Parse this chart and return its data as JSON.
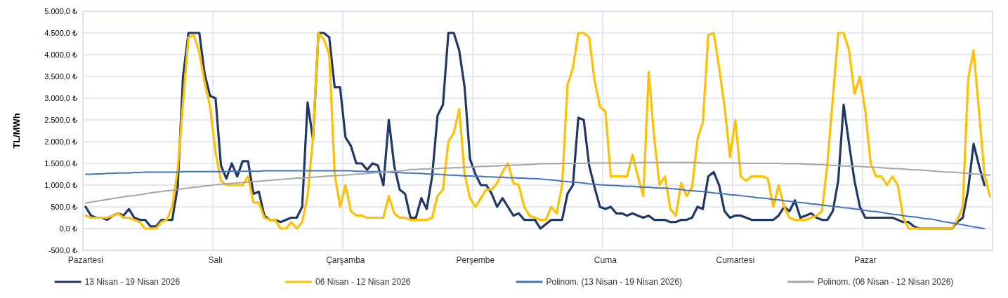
{
  "chart_data": {
    "type": "line",
    "ylabel": "TL/MWh",
    "categories": [
      "Pazartesi",
      null,
      null,
      null,
      null,
      null,
      null,
      null,
      null,
      null,
      null,
      null,
      null,
      null,
      null,
      null,
      null,
      null,
      null,
      null,
      null,
      null,
      null,
      null,
      "Salı",
      null,
      null,
      null,
      null,
      null,
      null,
      null,
      null,
      null,
      null,
      null,
      null,
      null,
      null,
      null,
      null,
      null,
      null,
      null,
      null,
      null,
      null,
      null,
      "Çarşamba",
      null,
      null,
      null,
      null,
      null,
      null,
      null,
      null,
      null,
      null,
      null,
      null,
      null,
      null,
      null,
      null,
      null,
      null,
      null,
      null,
      null,
      null,
      null,
      "Perşembe",
      null,
      null,
      null,
      null,
      null,
      null,
      null,
      null,
      null,
      null,
      null,
      null,
      null,
      null,
      null,
      null,
      null,
      null,
      null,
      null,
      null,
      null,
      null,
      "Cuma",
      null,
      null,
      null,
      null,
      null,
      null,
      null,
      null,
      null,
      null,
      null,
      null,
      null,
      null,
      null,
      null,
      null,
      null,
      null,
      null,
      null,
      null,
      null,
      "Cumartesi",
      null,
      null,
      null,
      null,
      null,
      null,
      null,
      null,
      null,
      null,
      null,
      null,
      null,
      null,
      null,
      null,
      null,
      null,
      null,
      null,
      null,
      null,
      null,
      "Pazar",
      null,
      null,
      null,
      null,
      null,
      null,
      null,
      null,
      null,
      null,
      null,
      null,
      null,
      null,
      null,
      null,
      null,
      null,
      null,
      null,
      null,
      null,
      null
    ],
    "ylim": [
      -500,
      5000
    ],
    "yticks": [
      {
        "value": -500,
        "label": "-500,0 ₺"
      },
      {
        "value": 0,
        "label": "0,0 ₺"
      },
      {
        "value": 500,
        "label": "500,0 ₺"
      },
      {
        "value": 1000,
        "label": "1.000,0 ₺"
      },
      {
        "value": 1500,
        "label": "1.500,0 ₺"
      },
      {
        "value": 2000,
        "label": "2.000,0 ₺"
      },
      {
        "value": 2500,
        "label": "2.500,0 ₺"
      },
      {
        "value": 3000,
        "label": "3.000,0 ₺"
      },
      {
        "value": 3500,
        "label": "3.500,0 ₺"
      },
      {
        "value": 4000,
        "label": "4.000,0 ₺"
      },
      {
        "value": 4500,
        "label": "4.500,0 ₺"
      },
      {
        "value": 5000,
        "label": "5.000,0 ₺"
      }
    ],
    "grid": true,
    "legend": "bottom",
    "marker": "none",
    "line_style": "solid",
    "series": [
      {
        "name": "13 Nisan - 19 Nisan 2026",
        "color": "#1f3864",
        "values": [
          500,
          300,
          250,
          250,
          200,
          300,
          350,
          300,
          450,
          250,
          200,
          200,
          50,
          50,
          200,
          200,
          200,
          950,
          3500,
          4500,
          4500,
          4500,
          3550,
          3050,
          3000,
          1450,
          1150,
          1500,
          1200,
          1550,
          1550,
          800,
          850,
          300,
          200,
          200,
          150,
          200,
          250,
          250,
          500,
          2900,
          2050,
          4500,
          4500,
          4400,
          3250,
          3250,
          2100,
          1900,
          1500,
          1500,
          1350,
          1500,
          1450,
          1000,
          2500,
          1450,
          900,
          800,
          250,
          250,
          700,
          450,
          1200,
          2600,
          2850,
          4500,
          4500,
          4100,
          3250,
          1600,
          1250,
          1000,
          1000,
          800,
          500,
          700,
          500,
          300,
          350,
          200,
          200,
          200,
          0,
          100,
          200,
          200,
          200,
          800,
          1000,
          2550,
          2500,
          1450,
          950,
          500,
          450,
          500,
          350,
          350,
          300,
          350,
          300,
          250,
          300,
          200,
          200,
          200,
          150,
          150,
          200,
          200,
          250,
          500,
          450,
          1200,
          1300,
          1000,
          400,
          250,
          300,
          300,
          250,
          200,
          200,
          200,
          200,
          200,
          300,
          500,
          400,
          650,
          250,
          300,
          350,
          250,
          200,
          200,
          400,
          1100,
          2850,
          1950,
          1100,
          500,
          250,
          250,
          250,
          250,
          250,
          250,
          200,
          150,
          150,
          50,
          0,
          0,
          0,
          0,
          0,
          0,
          0,
          150,
          250,
          900,
          1950,
          1450,
          1000,
          null
        ]
      },
      {
        "name": "06 Nisan - 12 Nisan 2026",
        "color": "#ffc000",
        "values": [
          300,
          250,
          250,
          250,
          250,
          300,
          350,
          250,
          250,
          200,
          150,
          0,
          0,
          0,
          150,
          200,
          500,
          1350,
          2900,
          4400,
          4450,
          4050,
          3350,
          2800,
          1750,
          1100,
          1000,
          1000,
          1000,
          1000,
          1200,
          600,
          600,
          250,
          200,
          200,
          0,
          0,
          150,
          0,
          150,
          750,
          2100,
          4500,
          4350,
          4000,
          1250,
          500,
          1000,
          400,
          300,
          300,
          250,
          250,
          250,
          250,
          750,
          350,
          250,
          250,
          200,
          200,
          200,
          200,
          250,
          750,
          900,
          2000,
          2200,
          2750,
          1250,
          700,
          500,
          700,
          900,
          900,
          1050,
          1300,
          1500,
          1050,
          1000,
          500,
          300,
          250,
          200,
          200,
          500,
          350,
          1000,
          3300,
          3700,
          4500,
          4500,
          4400,
          3400,
          2800,
          2700,
          1200,
          1200,
          1200,
          1200,
          1700,
          1200,
          750,
          3600,
          2100,
          1000,
          1200,
          450,
          300,
          1050,
          750,
          950,
          2050,
          2450,
          4450,
          4500,
          3700,
          2800,
          1650,
          2500,
          1200,
          1100,
          1200,
          1200,
          1200,
          1150,
          500,
          1000,
          500,
          250,
          200,
          200,
          200,
          250,
          300,
          400,
          1500,
          3000,
          4500,
          4500,
          4100,
          3100,
          3500,
          2700,
          1500,
          1200,
          1200,
          1000,
          1200,
          1000,
          250,
          0,
          0,
          0,
          0,
          0,
          0,
          0,
          0,
          0,
          200,
          500,
          3450,
          4100,
          2700,
          1250,
          750
        ]
      },
      {
        "name": "Polinom. (13 Nisan - 19 Nisan 2026)",
        "color": "#4472c4",
        "values": [
          1250,
          1250,
          1260,
          1260,
          1270,
          1270,
          1280,
          1280,
          1280,
          1290,
          1290,
          1300,
          1300,
          1300,
          1300,
          1300,
          1300,
          1300,
          1310,
          1310,
          1310,
          1310,
          1310,
          1310,
          1310,
          1310,
          1310,
          1320,
          1320,
          1320,
          1320,
          1320,
          1320,
          1330,
          1330,
          1330,
          1330,
          1330,
          1330,
          1330,
          1330,
          1330,
          1330,
          1330,
          1330,
          1330,
          1330,
          1330,
          1330,
          1330,
          1320,
          1320,
          1310,
          1310,
          1310,
          1300,
          1300,
          1290,
          1290,
          1280,
          1280,
          1270,
          1270,
          1260,
          1250,
          1250,
          1240,
          1230,
          1230,
          1220,
          1210,
          1210,
          1200,
          1200,
          1190,
          1190,
          1180,
          1180,
          1170,
          1170,
          1160,
          1160,
          1150,
          1150,
          1140,
          1130,
          1120,
          1110,
          1090,
          1080,
          1070,
          1060,
          1050,
          1030,
          1020,
          1010,
          1000,
          990,
          990,
          980,
          970,
          970,
          960,
          950,
          950,
          940,
          930,
          930,
          920,
          910,
          900,
          880,
          870,
          860,
          850,
          840,
          820,
          810,
          800,
          780,
          770,
          760,
          740,
          730,
          710,
          700,
          690,
          670,
          660,
          640,
          630,
          610,
          600,
          590,
          570,
          560,
          540,
          530,
          510,
          500,
          480,
          470,
          450,
          440,
          420,
          400,
          390,
          370,
          350,
          330,
          320,
          300,
          280,
          270,
          250,
          230,
          220,
          200,
          170,
          150,
          130,
          110,
          90,
          60,
          40,
          20,
          0,
          null
        ]
      },
      {
        "name": "Polinom. (06 Nisan - 12 Nisan 2026)",
        "color": "#a5a5a5",
        "values": [
          590,
          610,
          630,
          650,
          670,
          690,
          710,
          730,
          750,
          760,
          780,
          800,
          820,
          840,
          850,
          870,
          880,
          900,
          920,
          930,
          950,
          960,
          980,
          990,
          1010,
          1020,
          1030,
          1040,
          1050,
          1060,
          1070,
          1080,
          1090,
          1100,
          1110,
          1120,
          1130,
          1140,
          1150,
          1160,
          1160,
          1170,
          1180,
          1190,
          1200,
          1210,
          1220,
          1220,
          1230,
          1240,
          1250,
          1260,
          1270,
          1280,
          1290,
          1300,
          1310,
          1320,
          1330,
          1340,
          1360,
          1360,
          1370,
          1370,
          1380,
          1380,
          1390,
          1390,
          1400,
          1400,
          1410,
          1410,
          1420,
          1430,
          1430,
          1440,
          1440,
          1450,
          1450,
          1460,
          1460,
          1470,
          1470,
          1480,
          1490,
          1490,
          1490,
          1490,
          1500,
          1500,
          1500,
          1500,
          1500,
          1510,
          1510,
          1510,
          1510,
          1510,
          1510,
          1510,
          1510,
          1510,
          1520,
          1520,
          1520,
          1520,
          1520,
          1520,
          1520,
          1520,
          1520,
          1520,
          1520,
          1520,
          1510,
          1510,
          1510,
          1510,
          1510,
          1510,
          1510,
          1510,
          1500,
          1500,
          1500,
          1500,
          1500,
          1500,
          1500,
          1490,
          1490,
          1490,
          1490,
          1480,
          1480,
          1470,
          1470,
          1460,
          1450,
          1450,
          1440,
          1440,
          1430,
          1430,
          1420,
          1410,
          1410,
          1400,
          1390,
          1380,
          1380,
          1370,
          1360,
          1350,
          1350,
          1340,
          1330,
          1320,
          1310,
          1300,
          1300,
          1290,
          1280,
          1270,
          1260,
          1250,
          1240,
          1230
        ]
      }
    ]
  }
}
